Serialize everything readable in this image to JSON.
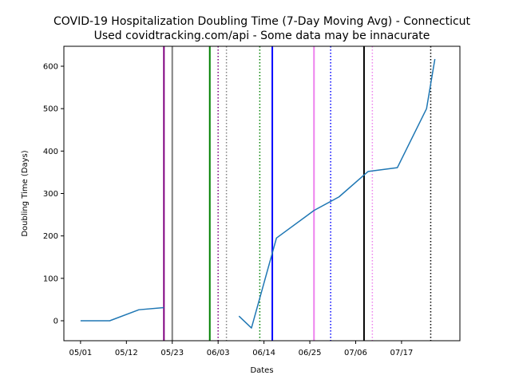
{
  "chart_data": {
    "type": "line",
    "title_lines": [
      "COVID-19 Hospitalization Doubling Time (7-Day Moving Avg) - Connecticut",
      "Used covidtracking.com/api - Some data may be innacurate"
    ],
    "xlabel": "Dates",
    "ylabel": "Doubling Time (Days)",
    "xlim": [
      "2020-04-27",
      "2020-07-31"
    ],
    "ylim": [
      -47,
      647
    ],
    "x_ticks": [
      {
        "date": "2020-05-01",
        "label": "05/01"
      },
      {
        "date": "2020-05-12",
        "label": "05/12"
      },
      {
        "date": "2020-05-23",
        "label": "05/23"
      },
      {
        "date": "2020-06-03",
        "label": "06/03"
      },
      {
        "date": "2020-06-14",
        "label": "06/14"
      },
      {
        "date": "2020-06-25",
        "label": "06/25"
      },
      {
        "date": "2020-07-06",
        "label": "07/06"
      },
      {
        "date": "2020-07-17",
        "label": "07/17"
      }
    ],
    "y_ticks": [
      0,
      100,
      200,
      300,
      400,
      500,
      600
    ],
    "grid": false,
    "series": [
      {
        "color": "#1f77b4",
        "segments": [
          [
            {
              "x": "2020-05-01",
              "y": 0
            },
            {
              "x": "2020-05-08",
              "y": 0
            },
            {
              "x": "2020-05-15",
              "y": 26
            },
            {
              "x": "2020-05-21",
              "y": 31
            }
          ],
          [
            {
              "x": "2020-06-08",
              "y": 11
            },
            {
              "x": "2020-06-11",
              "y": -17
            },
            {
              "x": "2020-06-17",
              "y": 195
            },
            {
              "x": "2020-06-26",
              "y": 260
            },
            {
              "x": "2020-07-02",
              "y": 292
            },
            {
              "x": "2020-07-09",
              "y": 352
            },
            {
              "x": "2020-07-16",
              "y": 361
            },
            {
              "x": "2020-07-23",
              "y": 500
            },
            {
              "x": "2020-07-25",
              "y": 617
            }
          ]
        ]
      }
    ],
    "vertical_lines": [
      {
        "x": "2020-05-21",
        "color": "#800080",
        "style": "solid"
      },
      {
        "x": "2020-05-23",
        "color": "#808080",
        "style": "solid"
      },
      {
        "x": "2020-06-01",
        "color": "#008000",
        "style": "solid"
      },
      {
        "x": "2020-06-03",
        "color": "#800080",
        "style": "dotted"
      },
      {
        "x": "2020-06-05",
        "color": "#808080",
        "style": "dotted"
      },
      {
        "x": "2020-06-13",
        "color": "#008000",
        "style": "dotted"
      },
      {
        "x": "2020-06-16",
        "color": "#0000ff",
        "style": "solid"
      },
      {
        "x": "2020-06-26",
        "color": "#ee82ee",
        "style": "solid"
      },
      {
        "x": "2020-06-30",
        "color": "#0000ff",
        "style": "dotted"
      },
      {
        "x": "2020-07-08",
        "color": "#000000",
        "style": "solid"
      },
      {
        "x": "2020-07-10",
        "color": "#ee82ee",
        "style": "dotted"
      },
      {
        "x": "2020-07-24",
        "color": "#000000",
        "style": "dotted"
      }
    ]
  }
}
